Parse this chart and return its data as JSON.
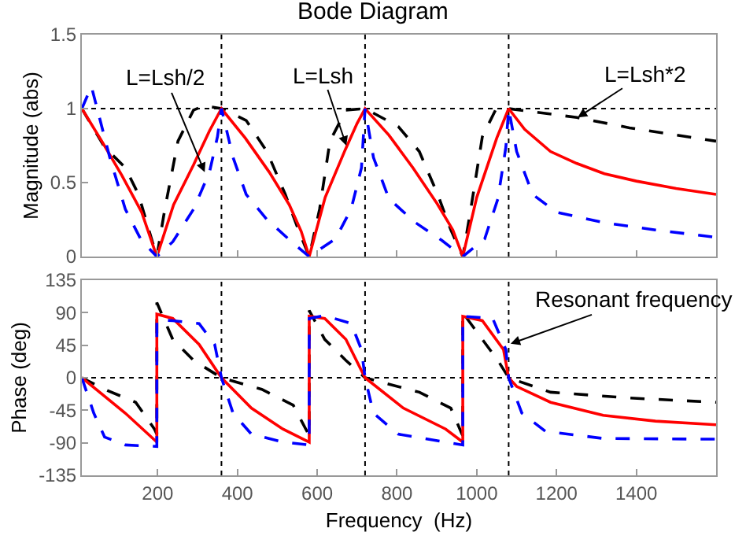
{
  "chart_data": [
    {
      "type": "line",
      "title": "Bode Diagram",
      "ylabel": "Magnitude (abs)",
      "xlim": [
        10,
        1600
      ],
      "xticks": [
        200,
        400,
        600,
        800,
        1000,
        1200,
        1400
      ],
      "ylim": [
        0,
        1.5
      ],
      "yticks": [
        0,
        0.5,
        1,
        1.5
      ],
      "tick_labels": "y",
      "series": [
        {
          "color": "#000000",
          "line_style": "dashed",
          "x": [
            10,
            67,
            119,
            152,
            178,
            198,
            218,
            251,
            290,
            317,
            360,
            422,
            474,
            520,
            553,
            580,
            606,
            632,
            672,
            720,
            803,
            856,
            902,
            935,
            965,
            985,
            1014,
            1047,
            1080,
            1251,
            1383,
            1600
          ],
          "values": [
            1,
            0.74,
            0.6,
            0.42,
            0.18,
            0,
            0.32,
            0.78,
            0.99,
            1.02,
            1,
            0.92,
            0.71,
            0.42,
            0.18,
            0,
            0.32,
            0.78,
            0.99,
            1,
            0.88,
            0.71,
            0.42,
            0.18,
            0,
            0.32,
            0.81,
            0.99,
            1,
            0.94,
            0.87,
            0.78
          ]
        },
        {
          "color": "#ff0000",
          "line_style": "solid",
          "x": [
            10,
            60,
            110,
            160,
            198,
            240,
            290,
            330,
            360,
            420,
            480,
            530,
            560,
            580,
            620,
            670,
            700,
            720,
            780,
            840,
            900,
            940,
            965,
            1000,
            1050,
            1080,
            1120,
            1185,
            1250,
            1320,
            1400,
            1500,
            1600
          ],
          "values": [
            1,
            0.78,
            0.55,
            0.3,
            0,
            0.35,
            0.62,
            0.85,
            1,
            0.8,
            0.57,
            0.35,
            0.17,
            0,
            0.4,
            0.72,
            0.9,
            1,
            0.82,
            0.6,
            0.36,
            0.18,
            0,
            0.4,
            0.8,
            1,
            0.86,
            0.71,
            0.63,
            0.56,
            0.51,
            0.46,
            0.42
          ]
        },
        {
          "color": "#0000ff",
          "line_style": "dashed",
          "x": [
            10,
            34,
            80,
            119,
            159,
            198,
            238,
            290,
            330,
            350,
            360,
            389,
            422,
            474,
            540,
            580,
            646,
            685,
            711,
            720,
            741,
            780,
            846,
            912,
            965,
            1020,
            1053,
            1073,
            1080,
            1100,
            1140,
            1200,
            1317,
            1448,
            1600
          ],
          "values": [
            1,
            1.15,
            0.67,
            0.32,
            0.11,
            0,
            0.1,
            0.32,
            0.57,
            0.81,
            1,
            0.67,
            0.42,
            0.25,
            0.09,
            0,
            0.12,
            0.32,
            0.6,
            1,
            0.67,
            0.39,
            0.23,
            0.11,
            0,
            0.12,
            0.39,
            0.74,
            1,
            0.71,
            0.42,
            0.3,
            0.23,
            0.18,
            0.13
          ]
        }
      ],
      "ref_lines": [
        {
          "axis": "x",
          "value": 360,
          "color": "#000000",
          "line_style": "dotted"
        },
        {
          "axis": "x",
          "value": 720,
          "color": "#000000",
          "line_style": "dotted"
        },
        {
          "axis": "x",
          "value": 1080,
          "color": "#000000",
          "line_style": "dotted"
        },
        {
          "axis": "y",
          "value": 1,
          "color": "#000000",
          "line_style": "dotted"
        }
      ],
      "annotations": [
        {
          "text": "L=Lsh/2",
          "x": 318,
          "y": 0.57
        },
        {
          "text": "L=Lsh",
          "x": 673,
          "y": 0.75
        },
        {
          "text": "L=Lsh*2",
          "x": 1253,
          "y": 0.94
        }
      ]
    },
    {
      "type": "line",
      "ylabel": "Phase (deg)",
      "xlabel": "Frequency  (Hz)",
      "xlim": [
        10,
        1600
      ],
      "xticks": [
        200,
        400,
        600,
        800,
        1000,
        1200,
        1400
      ],
      "ylim": [
        -135,
        135
      ],
      "yticks": [
        -135,
        -90,
        -45,
        0,
        45,
        90,
        135
      ],
      "series": [
        {
          "color": "#000000",
          "line_style": "dashed",
          "x": [
            10,
            67,
            145,
            192,
            198,
            198,
            238,
            290,
            360,
            461,
            540,
            578,
            580,
            580,
            619,
            672,
            720,
            856,
            935,
            963,
            965,
            965,
            1014,
            1053,
            1080,
            1185,
            1383,
            1600
          ],
          "values": [
            0,
            -16,
            -34,
            -71,
            -78,
            104,
            53,
            24,
            0,
            -16,
            -38,
            -78,
            -80,
            93,
            53,
            24,
            0,
            -20,
            -42,
            -78,
            -80,
            90,
            53,
            24,
            0,
            -20,
            -28,
            -34
          ]
        },
        {
          "color": "#ff0000",
          "line_style": "solid",
          "x": [
            10,
            119,
            198,
            198,
            238,
            304,
            360,
            435,
            514,
            580,
            580,
            619,
            672,
            720,
            816,
            922,
            965,
            965,
            1014,
            1067,
            1080,
            1100,
            1185,
            1317,
            1448,
            1600
          ],
          "values": [
            0,
            -49,
            -89,
            88,
            82,
            46,
            0,
            -42,
            -71,
            -89,
            85,
            82,
            53,
            0,
            -42,
            -71,
            -89,
            85,
            79,
            39,
            0,
            -12,
            -34,
            -52,
            -60,
            -65
          ]
        },
        {
          "color": "#0000ff",
          "line_style": "dashed",
          "x": [
            10,
            40,
            67,
            119,
            198,
            198,
            238,
            304,
            343,
            360,
            389,
            435,
            514,
            580,
            580,
            619,
            685,
            711,
            720,
            741,
            803,
            965,
            965,
            1040,
            1073,
            1080,
            1113,
            1172,
            1317,
            1600
          ],
          "values": [
            0,
            -49,
            -82,
            -93,
            -95,
            80,
            79,
            75,
            46,
            0,
            -49,
            -78,
            -89,
            -93,
            82,
            86,
            75,
            39,
            0,
            -49,
            -78,
            -93,
            85,
            82,
            39,
            0,
            -49,
            -74,
            -84,
            -85
          ]
        }
      ],
      "ref_lines": [
        {
          "axis": "x",
          "value": 360,
          "color": "#000000",
          "line_style": "dotted"
        },
        {
          "axis": "x",
          "value": 720,
          "color": "#000000",
          "line_style": "dotted"
        },
        {
          "axis": "x",
          "value": 1080,
          "color": "#000000",
          "line_style": "dotted"
        },
        {
          "axis": "y",
          "value": 0,
          "color": "#000000",
          "line_style": "dotted"
        }
      ],
      "annotations": [
        {
          "text": "Resonant frequency",
          "x": 1085,
          "y": 47
        }
      ]
    }
  ]
}
